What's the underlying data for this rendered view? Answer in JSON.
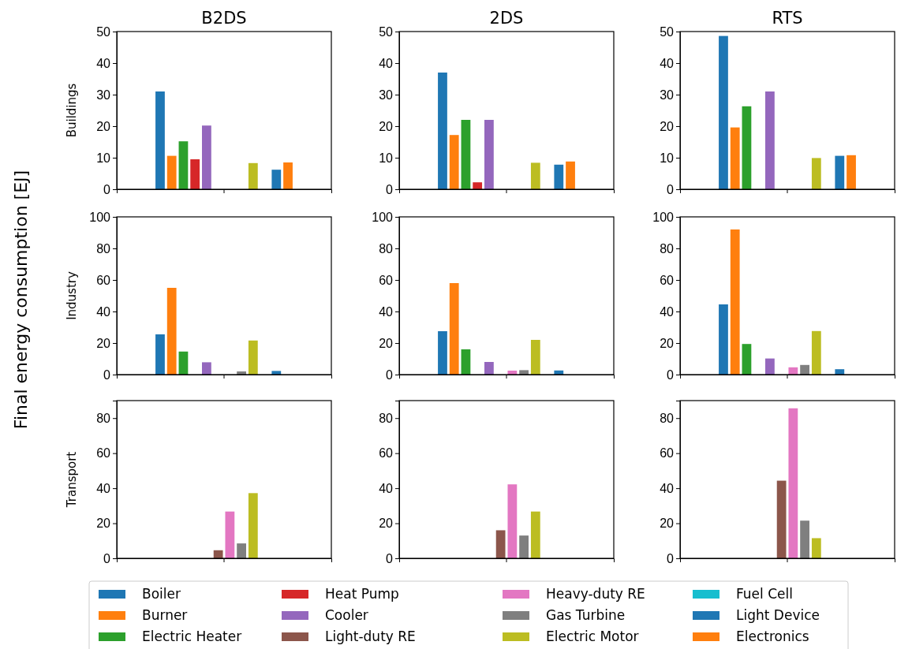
{
  "chart_data": [
    {
      "type": "bar",
      "title": "B2DS",
      "ylabel": "Buildings",
      "categories": [
        null
      ],
      "ylim": [
        0,
        50
      ],
      "yticks": [
        0,
        10,
        20,
        30,
        40,
        50
      ],
      "tick_labels": "y",
      "series": [
        {
          "color": "#1f77b4",
          "values": [
            31
          ]
        },
        {
          "color": "#ff7f0e",
          "values": [
            10.6
          ]
        },
        {
          "color": "#2ca02c",
          "values": [
            15.2
          ]
        },
        {
          "color": "#d62728",
          "values": [
            9.5
          ]
        },
        {
          "color": "#9467bd",
          "values": [
            20.2
          ]
        },
        {
          "color": "#8c564b",
          "values": [
            0
          ]
        },
        {
          "color": "#e377c2",
          "values": [
            0
          ]
        },
        {
          "color": "#7f7f7f",
          "values": [
            0
          ]
        },
        {
          "color": "#bcbd22",
          "values": [
            8.3
          ]
        },
        {
          "color": "#17becf",
          "values": [
            0
          ]
        },
        {
          "color": "#1f77b4",
          "values": [
            6.2
          ]
        },
        {
          "color": "#ff7f0e",
          "values": [
            8.5
          ]
        }
      ]
    },
    {
      "type": "bar",
      "title": "2DS",
      "categories": [
        null
      ],
      "ylim": [
        0,
        50
      ],
      "yticks": [
        0,
        10,
        20,
        30,
        40,
        50
      ],
      "tick_labels": "y",
      "series": [
        {
          "color": "#1f77b4",
          "values": [
            37
          ]
        },
        {
          "color": "#ff7f0e",
          "values": [
            17.2
          ]
        },
        {
          "color": "#2ca02c",
          "values": [
            22
          ]
        },
        {
          "color": "#d62728",
          "values": [
            2.2
          ]
        },
        {
          "color": "#9467bd",
          "values": [
            22
          ]
        },
        {
          "color": "#8c564b",
          "values": [
            0
          ]
        },
        {
          "color": "#e377c2",
          "values": [
            0
          ]
        },
        {
          "color": "#7f7f7f",
          "values": [
            0
          ]
        },
        {
          "color": "#bcbd22",
          "values": [
            8.4
          ]
        },
        {
          "color": "#17becf",
          "values": [
            0
          ]
        },
        {
          "color": "#1f77b4",
          "values": [
            7.8
          ]
        },
        {
          "color": "#ff7f0e",
          "values": [
            8.8
          ]
        }
      ]
    },
    {
      "type": "bar",
      "title": "RTS",
      "categories": [
        null
      ],
      "ylim": [
        0,
        50
      ],
      "yticks": [
        0,
        10,
        20,
        30,
        40,
        50
      ],
      "tick_labels": "y",
      "series": [
        {
          "color": "#1f77b4",
          "values": [
            48.6
          ]
        },
        {
          "color": "#ff7f0e",
          "values": [
            19.6
          ]
        },
        {
          "color": "#2ca02c",
          "values": [
            26.3
          ]
        },
        {
          "color": "#d62728",
          "values": [
            0
          ]
        },
        {
          "color": "#9467bd",
          "values": [
            31
          ]
        },
        {
          "color": "#8c564b",
          "values": [
            0
          ]
        },
        {
          "color": "#e377c2",
          "values": [
            0
          ]
        },
        {
          "color": "#7f7f7f",
          "values": [
            0
          ]
        },
        {
          "color": "#bcbd22",
          "values": [
            9.9
          ]
        },
        {
          "color": "#17becf",
          "values": [
            0
          ]
        },
        {
          "color": "#1f77b4",
          "values": [
            10.6
          ]
        },
        {
          "color": "#ff7f0e",
          "values": [
            10.8
          ]
        }
      ]
    },
    {
      "type": "bar",
      "ylabel": "Industry",
      "annotations": [
        "Final energy consumption [EJ]"
      ],
      "categories": [
        null
      ],
      "ylim": [
        0,
        100
      ],
      "yticks": [
        0,
        20,
        40,
        60,
        80,
        100
      ],
      "tick_labels": "y",
      "series": [
        {
          "color": "#1f77b4",
          "values": [
            25.5
          ]
        },
        {
          "color": "#ff7f0e",
          "values": [
            55
          ]
        },
        {
          "color": "#2ca02c",
          "values": [
            14.6
          ]
        },
        {
          "color": "#d62728",
          "values": [
            0
          ]
        },
        {
          "color": "#9467bd",
          "values": [
            7.8
          ]
        },
        {
          "color": "#8c564b",
          "values": [
            0
          ]
        },
        {
          "color": "#e377c2",
          "values": [
            0
          ]
        },
        {
          "color": "#7f7f7f",
          "values": [
            2
          ]
        },
        {
          "color": "#bcbd22",
          "values": [
            21.6
          ]
        },
        {
          "color": "#17becf",
          "values": [
            0
          ]
        },
        {
          "color": "#1f77b4",
          "values": [
            2.3
          ]
        },
        {
          "color": "#ff7f0e",
          "values": [
            0
          ]
        }
      ]
    },
    {
      "type": "bar",
      "categories": [
        null
      ],
      "ylim": [
        0,
        100
      ],
      "yticks": [
        0,
        20,
        40,
        60,
        80,
        100
      ],
      "tick_labels": "y",
      "series": [
        {
          "color": "#1f77b4",
          "values": [
            27.5
          ]
        },
        {
          "color": "#ff7f0e",
          "values": [
            58
          ]
        },
        {
          "color": "#2ca02c",
          "values": [
            16
          ]
        },
        {
          "color": "#d62728",
          "values": [
            0
          ]
        },
        {
          "color": "#9467bd",
          "values": [
            8
          ]
        },
        {
          "color": "#8c564b",
          "values": [
            0
          ]
        },
        {
          "color": "#e377c2",
          "values": [
            2.5
          ]
        },
        {
          "color": "#7f7f7f",
          "values": [
            2.8
          ]
        },
        {
          "color": "#bcbd22",
          "values": [
            22
          ]
        },
        {
          "color": "#17becf",
          "values": [
            0
          ]
        },
        {
          "color": "#1f77b4",
          "values": [
            2.6
          ]
        },
        {
          "color": "#ff7f0e",
          "values": [
            0
          ]
        }
      ]
    },
    {
      "type": "bar",
      "categories": [
        null
      ],
      "ylim": [
        0,
        100
      ],
      "yticks": [
        0,
        20,
        40,
        60,
        80,
        100
      ],
      "tick_labels": "y",
      "series": [
        {
          "color": "#1f77b4",
          "values": [
            44.5
          ]
        },
        {
          "color": "#ff7f0e",
          "values": [
            92
          ]
        },
        {
          "color": "#2ca02c",
          "values": [
            19.4
          ]
        },
        {
          "color": "#d62728",
          "values": [
            0
          ]
        },
        {
          "color": "#9467bd",
          "values": [
            10.2
          ]
        },
        {
          "color": "#8c564b",
          "values": [
            0
          ]
        },
        {
          "color": "#e377c2",
          "values": [
            4.6
          ]
        },
        {
          "color": "#7f7f7f",
          "values": [
            6.1
          ]
        },
        {
          "color": "#bcbd22",
          "values": [
            27.6
          ]
        },
        {
          "color": "#17becf",
          "values": [
            0
          ]
        },
        {
          "color": "#1f77b4",
          "values": [
            3.4
          ]
        },
        {
          "color": "#ff7f0e",
          "values": [
            0
          ]
        }
      ]
    },
    {
      "type": "bar",
      "ylabel": "Transport",
      "categories": [
        null
      ],
      "ylim": [
        0,
        90
      ],
      "yticks": [
        0,
        20,
        40,
        60,
        80
      ],
      "tick_labels": "y",
      "series": [
        {
          "color": "#1f77b4",
          "values": [
            0
          ]
        },
        {
          "color": "#ff7f0e",
          "values": [
            0
          ]
        },
        {
          "color": "#2ca02c",
          "values": [
            0
          ]
        },
        {
          "color": "#d62728",
          "values": [
            0
          ]
        },
        {
          "color": "#9467bd",
          "values": [
            0
          ]
        },
        {
          "color": "#8c564b",
          "values": [
            4.6
          ]
        },
        {
          "color": "#e377c2",
          "values": [
            26.7
          ]
        },
        {
          "color": "#7f7f7f",
          "values": [
            8.5
          ]
        },
        {
          "color": "#bcbd22",
          "values": [
            37.2
          ]
        },
        {
          "color": "#17becf",
          "values": [
            0
          ]
        },
        {
          "color": "#1f77b4",
          "values": [
            0
          ]
        },
        {
          "color": "#ff7f0e",
          "values": [
            0
          ]
        }
      ]
    },
    {
      "type": "bar",
      "categories": [
        null
      ],
      "ylim": [
        0,
        90
      ],
      "yticks": [
        0,
        20,
        40,
        60,
        80
      ],
      "tick_labels": "y",
      "series": [
        {
          "color": "#1f77b4",
          "values": [
            0
          ]
        },
        {
          "color": "#ff7f0e",
          "values": [
            0
          ]
        },
        {
          "color": "#2ca02c",
          "values": [
            0
          ]
        },
        {
          "color": "#d62728",
          "values": [
            0
          ]
        },
        {
          "color": "#9467bd",
          "values": [
            0
          ]
        },
        {
          "color": "#8c564b",
          "values": [
            16
          ]
        },
        {
          "color": "#e377c2",
          "values": [
            42.2
          ]
        },
        {
          "color": "#7f7f7f",
          "values": [
            13
          ]
        },
        {
          "color": "#bcbd22",
          "values": [
            26.7
          ]
        },
        {
          "color": "#17becf",
          "values": [
            0
          ]
        },
        {
          "color": "#1f77b4",
          "values": [
            0
          ]
        },
        {
          "color": "#ff7f0e",
          "values": [
            0
          ]
        }
      ]
    },
    {
      "type": "bar",
      "legend": "bottom",
      "categories": [
        null
      ],
      "ylim": [
        0,
        90
      ],
      "yticks": [
        0,
        20,
        40,
        60,
        80
      ],
      "tick_labels": "y",
      "series": [
        {
          "name": "Boiler",
          "color": "#1f77b4",
          "values": [
            0
          ]
        },
        {
          "name": "Burner",
          "color": "#ff7f0e",
          "values": [
            0
          ]
        },
        {
          "name": "Electric Heater",
          "color": "#2ca02c",
          "values": [
            0
          ]
        },
        {
          "name": "Heat Pump",
          "color": "#d62728",
          "values": [
            0
          ]
        },
        {
          "name": "Cooler",
          "color": "#9467bd",
          "values": [
            0
          ]
        },
        {
          "name": "Light-duty RE",
          "color": "#8c564b",
          "values": [
            44.3
          ]
        },
        {
          "name": "Heavy-duty RE",
          "color": "#e377c2",
          "values": [
            85.6
          ]
        },
        {
          "name": "Gas Turbine",
          "color": "#7f7f7f",
          "values": [
            21.5
          ]
        },
        {
          "name": "Electric Motor",
          "color": "#bcbd22",
          "values": [
            11.5
          ]
        },
        {
          "name": "Fuel Cell",
          "color": "#17becf",
          "values": [
            0
          ]
        },
        {
          "name": "Light Device",
          "color": "#1f77b4",
          "values": [
            0
          ]
        },
        {
          "name": "Electronics",
          "color": "#ff7f0e",
          "values": [
            0
          ]
        }
      ]
    }
  ]
}
